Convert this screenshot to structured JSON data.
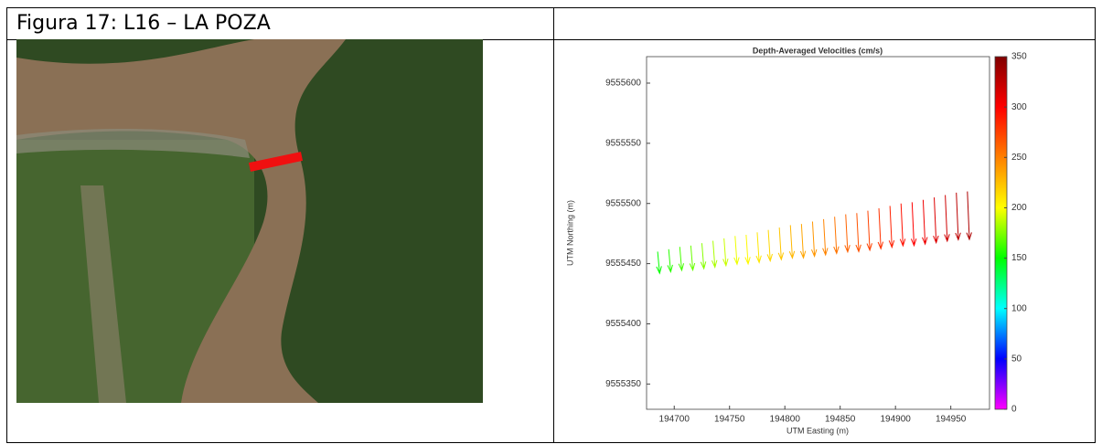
{
  "caption": "Figura 17: L16 – LA POZA",
  "chart_data": {
    "type": "quiver",
    "title": "Depth-Averaged Velocities (cm/s)",
    "xlabel": "UTM Easting (m)",
    "ylabel": "UTM Northing (m)",
    "xlim": [
      194675,
      194985
    ],
    "ylim": [
      9555329,
      9555622
    ],
    "xticks": [
      194700,
      194750,
      194800,
      194850,
      194900,
      194950
    ],
    "yticks": [
      9555350,
      9555400,
      9555450,
      9555500,
      9555550,
      9555600
    ],
    "clim": [
      0,
      350
    ],
    "cticks": [
      0,
      50,
      100,
      150,
      200,
      250,
      300,
      350
    ],
    "colormap": [
      "#ff00ff",
      "#0000ff",
      "#00ffff",
      "#00ff00",
      "#ffff00",
      "#ff8000",
      "#ff0000",
      "#800000"
    ],
    "x": [
      194685,
      194695,
      194705,
      194715,
      194725,
      194735,
      194745,
      194755,
      194765,
      194775,
      194785,
      194795,
      194805,
      194815,
      194825,
      194835,
      194845,
      194855,
      194865,
      194875,
      194885,
      194895,
      194905,
      194915,
      194925,
      194935,
      194945,
      194955,
      194965
    ],
    "y": [
      9555460,
      9555462,
      9555464,
      9555465,
      9555467,
      9555469,
      9555471,
      9555473,
      9555474,
      9555476,
      9555478,
      9555480,
      9555482,
      9555483,
      9555485,
      9555487,
      9555489,
      9555491,
      9555492,
      9555494,
      9555496,
      9555498,
      9555500,
      9555501,
      9555503,
      9555505,
      9555507,
      9555509,
      9555510
    ],
    "u": [
      15,
      15,
      15,
      15,
      15,
      15,
      15,
      15,
      15,
      15,
      15,
      15,
      15,
      15,
      15,
      15,
      15,
      15,
      15,
      15,
      15,
      15,
      15,
      15,
      15,
      15,
      15,
      15,
      15
    ],
    "v": [
      -150,
      -157,
      -163,
      -170,
      -176,
      -183,
      -189,
      -196,
      -202,
      -209,
      -215,
      -222,
      -228,
      -235,
      -241,
      -248,
      -254,
      -261,
      -267,
      -274,
      -280,
      -287,
      -293,
      -300,
      -306,
      -313,
      -319,
      -326,
      -332
    ]
  }
}
